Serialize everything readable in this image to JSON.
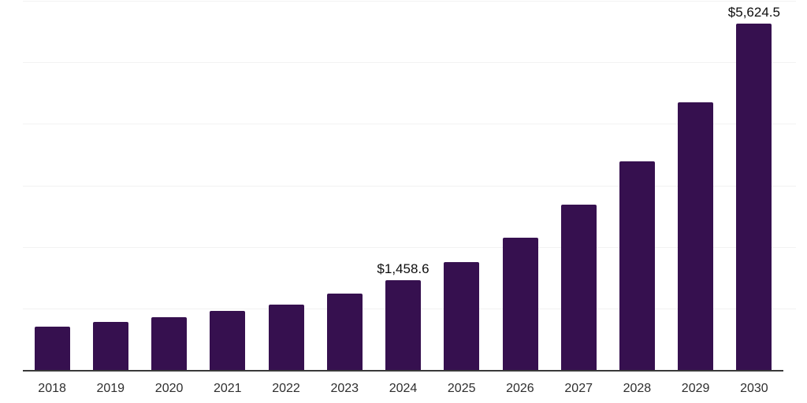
{
  "chart_data": {
    "type": "bar",
    "title": "",
    "xlabel": "",
    "ylabel": "",
    "categories": [
      "2018",
      "2019",
      "2020",
      "2021",
      "2022",
      "2023",
      "2024",
      "2025",
      "2026",
      "2027",
      "2028",
      "2029",
      "2030"
    ],
    "values": [
      702,
      779,
      856,
      958,
      1060,
      1239,
      1458.6,
      1750,
      2146,
      2682,
      3385,
      4356,
      5624.5
    ],
    "ylim": [
      0,
      6000
    ],
    "gridline_step": 1000,
    "grid": true,
    "legend_position": "none",
    "data_labels": [
      {
        "category": "2024",
        "text": "$1,458.6"
      },
      {
        "category": "2030",
        "text": "$5,624.5"
      }
    ]
  },
  "colors": {
    "bar": "#36104F",
    "axis_line": "#3a3a3a",
    "gridline": "#f2f2f2",
    "data_label_text": "#0d0d0d",
    "tick_label_text": "#2e2e2e",
    "background": "#ffffff"
  }
}
